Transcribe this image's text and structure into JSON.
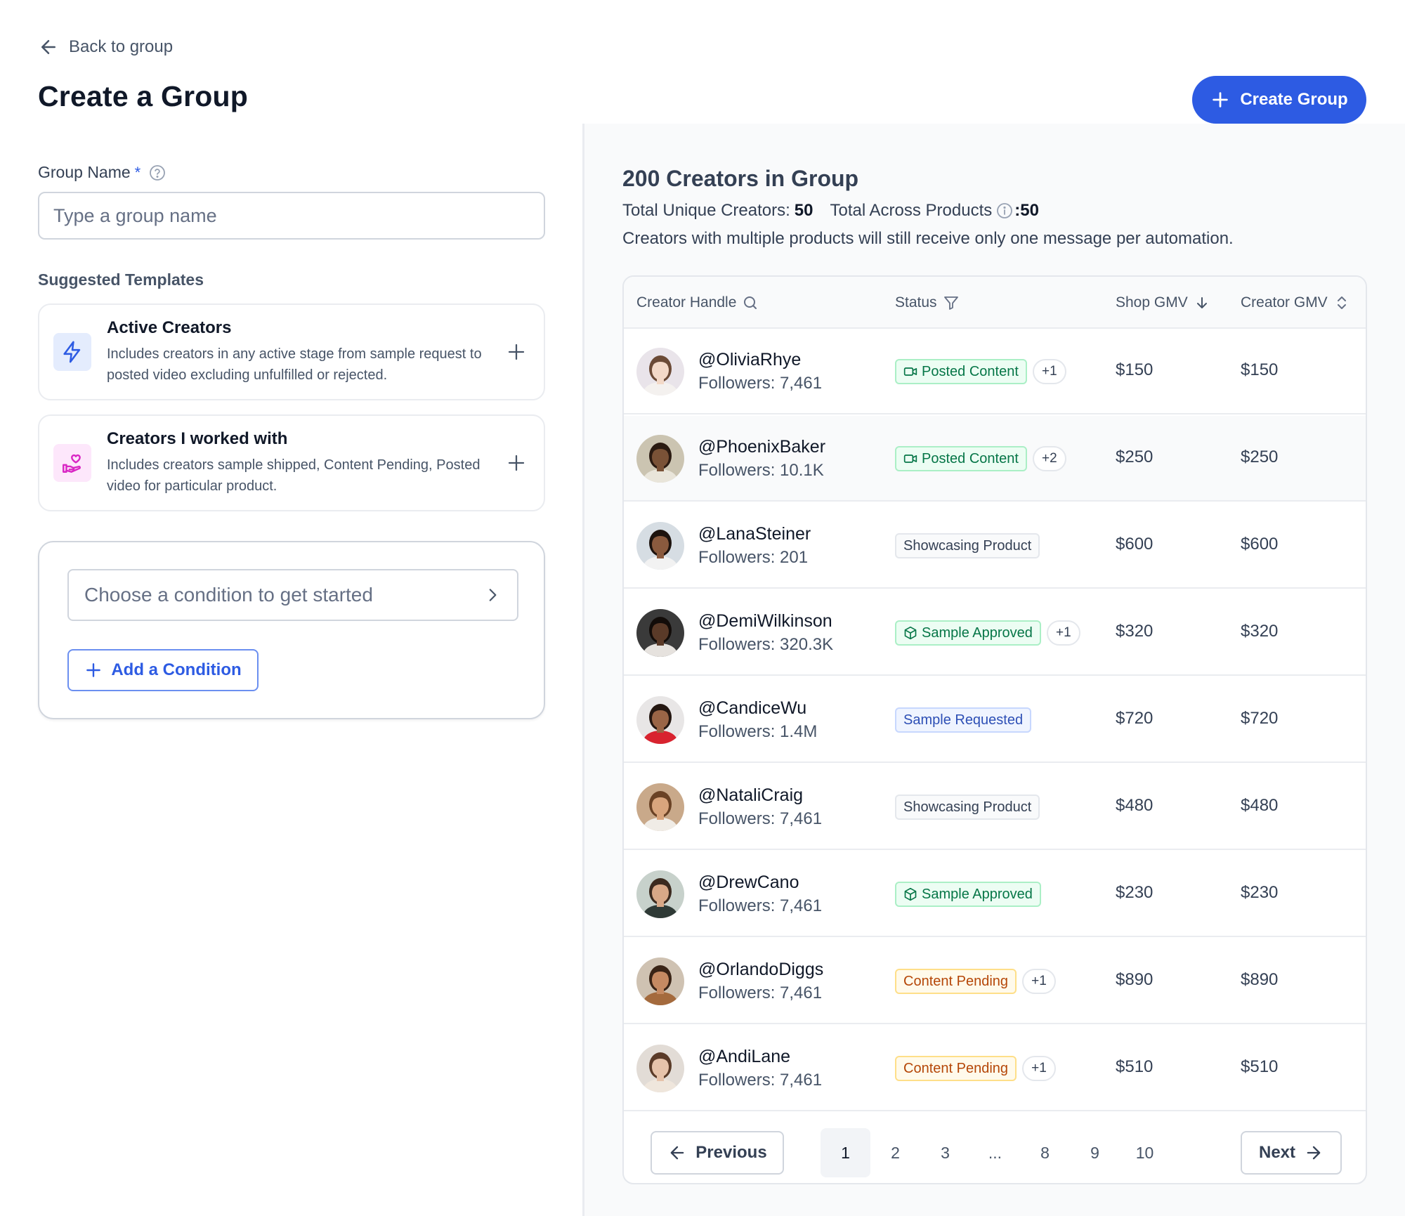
{
  "header": {
    "back_label": "Back to group",
    "title": "Create a Group",
    "create_button": "Create Group"
  },
  "form": {
    "group_name_label": "Group Name",
    "required_mark": "*",
    "group_name_placeholder": "Type a group name",
    "group_name_value": "",
    "templates_label": "Suggested Templates",
    "templates": [
      {
        "title": "Active Creators",
        "description": "Includes creators in any active stage from sample request to posted video excluding unfulfilled or rejected.",
        "icon": "lightning-icon"
      },
      {
        "title": "Creators I worked with",
        "description": "Includes creators sample shipped, Content Pending, Posted video for particular product.",
        "icon": "hand-heart-icon"
      }
    ],
    "condition_placeholder": "Choose a condition to get started",
    "add_condition_label": "Add a Condition"
  },
  "summary": {
    "title": "200 Creators in Group",
    "unique_label": "Total Unique Creators:",
    "unique_value": "50",
    "across_label": "Total Across Products",
    "across_value": ":50",
    "note": "Creators with multiple products will still receive only one message per automation."
  },
  "table": {
    "columns": [
      "Creator Handle",
      "Status",
      "Shop GMV",
      "Creator GMV"
    ],
    "rows": [
      {
        "handle": "@OliviaRhye",
        "followers": "Followers: 7,461",
        "status": "Posted Content",
        "kind": "posted",
        "extra": "+1",
        "shop_gmv": "$150",
        "creator_gmv": "$150",
        "skin": "#f3d9c8",
        "hair": "#6b4a36",
        "bg": "#e9e4ea",
        "shirt": "#f4f1ef"
      },
      {
        "handle": "@PhoenixBaker",
        "followers": "Followers: 10.1K",
        "status": "Posted Content",
        "kind": "posted",
        "extra": "+2",
        "shop_gmv": "$250",
        "creator_gmv": "$250",
        "skin": "#7a5237",
        "hair": "#2b1b12",
        "bg": "#cbc4b1",
        "shirt": "#e9e5da"
      },
      {
        "handle": "@LanaSteiner",
        "followers": "Followers: 201",
        "status": "Showcasing Product",
        "kind": "showcase",
        "extra": "",
        "shop_gmv": "$600",
        "creator_gmv": "$600",
        "skin": "#8a5a3e",
        "hair": "#1d130e",
        "bg": "#d6dde3",
        "shirt": "#f2f2f2"
      },
      {
        "handle": "@DemiWilkinson",
        "followers": "Followers: 320.3K",
        "status": "Sample Approved",
        "kind": "approved",
        "extra": "+1",
        "shop_gmv": "$320",
        "creator_gmv": "$320",
        "skin": "#5a3a28",
        "hair": "#120c09",
        "bg": "#3a3a3a",
        "shirt": "#e6e2de"
      },
      {
        "handle": "@CandiceWu",
        "followers": "Followers: 1.4M",
        "status": "Sample Requested",
        "kind": "requested",
        "extra": "",
        "shop_gmv": "$720",
        "creator_gmv": "$720",
        "skin": "#9a6546",
        "hair": "#241711",
        "bg": "#e8e6e6",
        "shirt": "#d8232f"
      },
      {
        "handle": "@NataliCraig",
        "followers": "Followers: 7,461",
        "status": "Showcasing Product",
        "kind": "showcase",
        "extra": "",
        "shop_gmv": "$480",
        "creator_gmv": "$480",
        "skin": "#d9a57d",
        "hair": "#6a4225",
        "bg": "#c9a98a",
        "shirt": "#f0ece6"
      },
      {
        "handle": "@DrewCano",
        "followers": "Followers: 7,461",
        "status": "Sample Approved",
        "kind": "approved",
        "extra": "",
        "shop_gmv": "$230",
        "creator_gmv": "$230",
        "skin": "#d8a887",
        "hair": "#3b2a1f",
        "bg": "#c7d1cb",
        "shirt": "#2f3a36"
      },
      {
        "handle": "@OrlandoDiggs",
        "followers": "Followers: 7,461",
        "status": "Content Pending",
        "kind": "pending",
        "extra": "+1",
        "shop_gmv": "$890",
        "creator_gmv": "$890",
        "skin": "#c68a62",
        "hair": "#3a2416",
        "bg": "#cfc2b2",
        "shirt": "#a46a3d"
      },
      {
        "handle": "@AndiLane",
        "followers": "Followers: 7,461",
        "status": "Content Pending",
        "kind": "pending",
        "extra": "+1",
        "shop_gmv": "$510",
        "creator_gmv": "$510",
        "skin": "#e6c3aa",
        "hair": "#5a3b28",
        "bg": "#e2dcd6",
        "shirt": "#efe6dc"
      }
    ]
  },
  "pagination": {
    "previous": "Previous",
    "next": "Next",
    "pages": [
      "1",
      "2",
      "3",
      "...",
      "8",
      "9",
      "10"
    ],
    "active": "1"
  }
}
